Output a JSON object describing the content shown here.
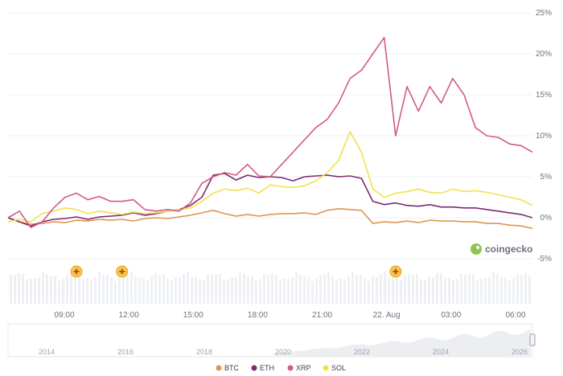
{
  "brand": {
    "name": "coingecko"
  },
  "chart_data": {
    "type": "line",
    "x_ticks": [
      "09:00",
      "12:00",
      "15:00",
      "18:00",
      "21:00",
      "22. Aug",
      "03:00",
      "06:00"
    ],
    "y_ticks": [
      "25%",
      "20%",
      "15%",
      "10%",
      "5%",
      "0%",
      "-5%"
    ],
    "ylim": [
      -5,
      25
    ],
    "grid": true,
    "legend_position": "bottom-center",
    "x": [
      0,
      0.5,
      1,
      1.5,
      2,
      2.5,
      3,
      3.5,
      4,
      4.5,
      5,
      5.5,
      6,
      6.5,
      7,
      7.5,
      8,
      8.5,
      9,
      9.5,
      10,
      10.5,
      11,
      11.5,
      12,
      12.5,
      13,
      13.5,
      14,
      14.5,
      15,
      15.5,
      16,
      16.5,
      17,
      17.5,
      18,
      18.5,
      19,
      19.5,
      20,
      20.5,
      21,
      21.5,
      22,
      22.5,
      23
    ],
    "series": [
      {
        "name": "BTC",
        "color": "#e0954f",
        "values": [
          0,
          -0.5,
          -0.8,
          -0.7,
          -0.5,
          -0.6,
          -0.3,
          -0.4,
          -0.2,
          -0.3,
          -0.2,
          -0.4,
          -0.1,
          0,
          -0.1,
          0.1,
          0.3,
          0.6,
          0.9,
          0.5,
          0.2,
          0.4,
          0.2,
          0.4,
          0.5,
          0.5,
          0.6,
          0.4,
          0.9,
          1.1,
          1,
          0.9,
          -0.7,
          -0.5,
          -0.6,
          -0.4,
          -0.6,
          -0.3,
          -0.4,
          -0.4,
          -0.5,
          -0.5,
          -0.7,
          -0.7,
          -0.9,
          -1,
          -1.3
        ]
      },
      {
        "name": "ETH",
        "color": "#7b2a73",
        "values": [
          0,
          -0.5,
          -1,
          -0.5,
          -0.2,
          -0.1,
          0.1,
          -0.2,
          0.1,
          0.2,
          0.3,
          0.6,
          0.3,
          0.5,
          0.8,
          1,
          1.5,
          2.5,
          5.2,
          5.4,
          4.6,
          5.2,
          4.9,
          5,
          4.9,
          4.5,
          5,
          5.1,
          5.2,
          5,
          5.1,
          4.8,
          2,
          1.6,
          1.8,
          1.5,
          1.4,
          1.6,
          1.3,
          1.3,
          1.2,
          1.2,
          1,
          0.8,
          0.6,
          0.4,
          0
        ]
      },
      {
        "name": "XRP",
        "color": "#d25a83",
        "values": [
          0,
          0.8,
          -1.2,
          -0.5,
          1.2,
          2.5,
          3,
          2.2,
          2.6,
          2,
          2,
          2.2,
          1,
          0.8,
          1,
          0.8,
          1.8,
          4.2,
          5,
          5.5,
          5.2,
          6.5,
          5.1,
          5,
          6.5,
          8,
          9.5,
          11,
          12,
          14,
          17,
          18,
          20,
          22,
          10,
          16,
          13,
          16,
          14,
          17,
          15,
          11,
          10,
          9.8,
          9,
          8.8,
          8
        ]
      },
      {
        "name": "SOL",
        "color": "#f5df4d",
        "values": [
          -0.5,
          -0.2,
          -0.5,
          0.5,
          0.8,
          1.2,
          1,
          0.5,
          0.8,
          0.6,
          0.4,
          0.7,
          0.5,
          0.6,
          0.8,
          1,
          1.2,
          2,
          3,
          3.5,
          3.3,
          3.6,
          3,
          4,
          3.8,
          3.7,
          3.9,
          4.5,
          5.5,
          7,
          10.5,
          8,
          3.5,
          2.5,
          3,
          3.2,
          3.5,
          3.1,
          3,
          3.5,
          3.2,
          3.3,
          3.1,
          2.8,
          2.5,
          2.2,
          1.5
        ]
      }
    ],
    "markers_x": [
      3,
      5,
      17
    ],
    "navigator": {
      "year_labels": [
        "2014",
        "2016",
        "2018",
        "2020",
        "2022",
        "2024",
        "2026"
      ]
    }
  }
}
